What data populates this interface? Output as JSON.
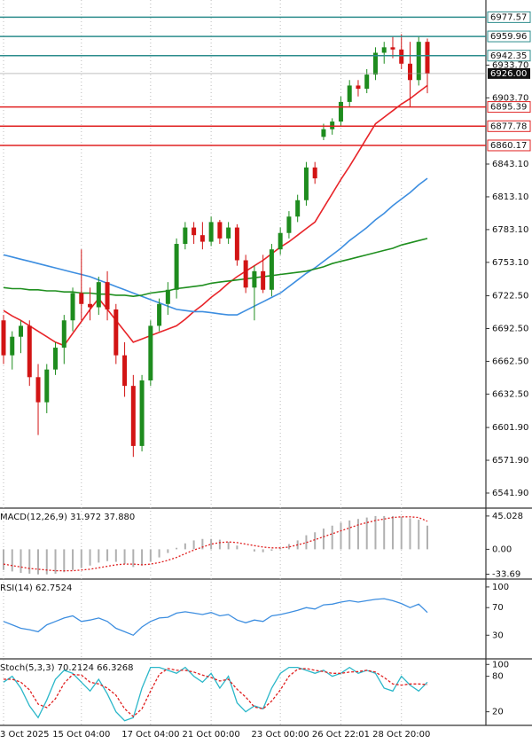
{
  "chart_data": [
    {
      "type": "candlestick",
      "categories": [
        "3 Oct 2025",
        null,
        null,
        null,
        null,
        null,
        null,
        null,
        null,
        "15 Oct 04:00",
        null,
        null,
        null,
        null,
        null,
        null,
        null,
        "17 Oct 04:00",
        null,
        null,
        null,
        null,
        null,
        null,
        "21 Oct 00:00",
        null,
        null,
        null,
        null,
        null,
        null,
        null,
        "23 Oct 00:00",
        null,
        null,
        null,
        null,
        null,
        null,
        "26 Oct 22:01",
        null,
        null,
        null,
        null,
        null,
        null,
        "28 Oct 20:00",
        null,
        null,
        null
      ],
      "open": [
        6700,
        6668,
        6685,
        6695,
        6648,
        6625,
        6655,
        6675,
        6700,
        6725,
        6715,
        6712,
        6735,
        6710,
        6668,
        6640,
        6585,
        6645,
        6695,
        6715,
        6728,
        6770,
        6785,
        6778,
        6772,
        6790,
        6775,
        6785,
        6755,
        6730,
        6745,
        6728,
        6765,
        6780,
        6795,
        6810,
        6840,
        6868,
        6875,
        6882,
        6900,
        6915,
        6912,
        6925,
        6945,
        6950,
        6948,
        6935,
        6920,
        6955
      ],
      "high": [
        6705,
        6690,
        6700,
        6700,
        6660,
        6660,
        6680,
        6705,
        6730,
        6765,
        6730,
        6740,
        6745,
        6715,
        6680,
        6650,
        6650,
        6700,
        6720,
        6735,
        6775,
        6790,
        6790,
        6790,
        6795,
        6792,
        6790,
        6788,
        6760,
        6750,
        6760,
        6770,
        6785,
        6800,
        6815,
        6845,
        6845,
        6880,
        6885,
        6905,
        6920,
        6920,
        6930,
        6950,
        6955,
        6960,
        6962,
        6955,
        6960,
        6958
      ],
      "low": [
        6660,
        6655,
        6670,
        6640,
        6595,
        6615,
        6650,
        6660,
        6690,
        6700,
        6700,
        6705,
        6700,
        6660,
        6630,
        6575,
        6580,
        6640,
        6690,
        6705,
        6720,
        6765,
        6770,
        6765,
        6768,
        6770,
        6770,
        6750,
        6725,
        6700,
        6725,
        6722,
        6760,
        6775,
        6790,
        6805,
        6825,
        6865,
        6870,
        6878,
        6895,
        6905,
        6908,
        6920,
        6935,
        6940,
        6930,
        6895,
        6915,
        6908
      ],
      "close": [
        6668,
        6685,
        6695,
        6648,
        6625,
        6655,
        6675,
        6700,
        6725,
        6715,
        6712,
        6735,
        6710,
        6668,
        6640,
        6585,
        6645,
        6695,
        6715,
        6728,
        6770,
        6785,
        6778,
        6772,
        6790,
        6775,
        6785,
        6755,
        6730,
        6745,
        6728,
        6765,
        6780,
        6795,
        6810,
        6840,
        6830,
        6875,
        6882,
        6900,
        6915,
        6912,
        6925,
        6945,
        6950,
        6948,
        6935,
        6920,
        6955,
        6926
      ],
      "colors": {
        "up": "#1e8c1e",
        "down": "#d21414"
      },
      "overlays": [
        {
          "color": "#e8252a",
          "values": [
            6709,
            6704,
            6700,
            6695,
            6690,
            6685,
            6680,
            6677,
            6688,
            6699,
            6710,
            6720,
            6710,
            6700,
            6690,
            6680,
            6683,
            6686,
            6689,
            6692,
            6695,
            6701,
            6708,
            6714,
            6721,
            6727,
            6734,
            6740,
            6745,
            6750,
            6755,
            6761,
            6767,
            6772,
            6778,
            6784,
            6790,
            6803,
            6816,
            6829,
            6841,
            6854,
            6867,
            6880,
            6886,
            6892,
            6898,
            6903,
            6909,
            6915
          ]
        },
        {
          "color": "#3d8ee0",
          "values": [
            6760,
            6758,
            6756,
            6754,
            6752,
            6750,
            6748,
            6746,
            6744,
            6742,
            6740,
            6737,
            6734,
            6731,
            6728,
            6725,
            6722,
            6719,
            6716,
            6713,
            6710,
            6709,
            6708,
            6708,
            6707,
            6706,
            6705,
            6705,
            6709,
            6713,
            6717,
            6721,
            6725,
            6731,
            6737,
            6743,
            6748,
            6754,
            6760,
            6766,
            6773,
            6779,
            6785,
            6792,
            6798,
            6805,
            6811,
            6817,
            6824,
            6830
          ]
        },
        {
          "color": "#1f8f1f",
          "values": [
            6730,
            6729,
            6729,
            6728,
            6728,
            6727,
            6727,
            6726,
            6726,
            6725,
            6725,
            6724,
            6724,
            6723,
            6723,
            6722,
            6723,
            6725,
            6726,
            6727,
            6729,
            6730,
            6731,
            6732,
            6734,
            6735,
            6736,
            6737,
            6738,
            6739,
            6740,
            6741,
            6742,
            6743,
            6744,
            6745,
            6747,
            6749,
            6752,
            6754,
            6756,
            6758,
            6760,
            6762,
            6764,
            6766,
            6769,
            6771,
            6773,
            6775
          ]
        }
      ],
      "levels": [
        {
          "value": 6977.57,
          "color": "#2b8c8c"
        },
        {
          "value": 6959.96,
          "color": "#2b8c8c"
        },
        {
          "value": 6942.35,
          "color": "#2b8c8c"
        },
        {
          "value": 6895.39,
          "color": "#e02020"
        },
        {
          "value": 6877.78,
          "color": "#e02020"
        },
        {
          "value": 6860.17,
          "color": "#e02020"
        }
      ],
      "last": {
        "value": 6926,
        "label": "6926.00"
      },
      "ylim": [
        6528.9,
        6993.3
      ],
      "yticks": [
        {
          "value": 6541.9,
          "label": "6541.90"
        },
        {
          "value": 6571.9,
          "label": "6571.90"
        },
        {
          "value": 6601.9,
          "label": "6601.90"
        },
        {
          "value": 6632.5,
          "label": "6632.50"
        },
        {
          "value": 6662.5,
          "label": "6662.50"
        },
        {
          "value": 6692.5,
          "label": "6692.50"
        },
        {
          "value": 6722.5,
          "label": "6722.50"
        },
        {
          "value": 6753.1,
          "label": "6753.10"
        },
        {
          "value": 6783.1,
          "label": "6783.10"
        },
        {
          "value": 6813.1,
          "label": "6813.10"
        },
        {
          "value": 6843.1,
          "label": "6843.10"
        },
        {
          "value": 6903.7,
          "label": "6903.70"
        },
        {
          "value": 6933.7,
          "label": "6933.70"
        }
      ]
    },
    {
      "type": "macd",
      "title": "MACD(12,26,9) 31.972 37.880",
      "values": [
        -28,
        -30,
        -32,
        -33,
        -34,
        -34,
        -33,
        -31,
        -28,
        -25,
        -22,
        -18,
        -16,
        -17,
        -20,
        -24,
        -22,
        -17,
        -11,
        -5,
        2,
        8,
        12,
        14,
        14,
        13,
        10,
        5,
        0,
        -3,
        -4,
        -2,
        2,
        7,
        12,
        19,
        23,
        28,
        32,
        36,
        39,
        41,
        43,
        45,
        45,
        45,
        44,
        42,
        40,
        32
      ],
      "signal": [
        -20,
        -22,
        -24,
        -26,
        -27,
        -28,
        -29,
        -29,
        -29,
        -28,
        -27,
        -25,
        -23,
        -21,
        -20,
        -20,
        -21,
        -20,
        -18,
        -15,
        -11,
        -6,
        -1,
        3,
        7,
        9,
        10,
        9,
        7,
        5,
        3,
        2,
        2,
        3,
        6,
        9,
        13,
        17,
        21,
        25,
        29,
        33,
        36,
        39,
        41,
        43,
        44,
        44,
        43,
        38
      ],
      "colors": {
        "bars": "#b0b0b0",
        "signal": "#e02020"
      },
      "ylim": [
        -37.9,
        52.1
      ],
      "yticks": [
        -33.69,
        {
          "value": 0,
          "label": "0.00"
        },
        45.028
      ]
    },
    {
      "type": "rsi",
      "title": "RSI(14) 62.7524",
      "values": [
        50,
        45,
        40,
        38,
        35,
        45,
        50,
        55,
        58,
        50,
        52,
        55,
        50,
        40,
        35,
        30,
        42,
        50,
        55,
        56,
        62,
        64,
        62,
        60,
        63,
        58,
        60,
        52,
        48,
        52,
        50,
        58,
        60,
        63,
        66,
        70,
        68,
        74,
        75,
        78,
        80,
        78,
        80,
        82,
        83,
        80,
        76,
        70,
        75,
        63
      ],
      "color": "#3d8ee0",
      "ylim": [
        -1.8,
        107.6
      ],
      "yticks": [
        30,
        70,
        100
      ]
    },
    {
      "type": "stoch",
      "title": "Stoch(5,3,3) 70.2124 66.3268",
      "k": [
        70,
        80,
        60,
        30,
        10,
        40,
        75,
        90,
        85,
        70,
        55,
        75,
        50,
        20,
        5,
        10,
        60,
        95,
        95,
        90,
        85,
        95,
        80,
        70,
        85,
        60,
        80,
        35,
        20,
        30,
        25,
        60,
        85,
        95,
        95,
        90,
        85,
        90,
        80,
        85,
        95,
        85,
        90,
        85,
        60,
        55,
        80,
        65,
        55,
        70
      ],
      "d": [
        75,
        75,
        70,
        57,
        33,
        27,
        42,
        68,
        83,
        82,
        70,
        67,
        60,
        48,
        25,
        12,
        25,
        55,
        83,
        93,
        90,
        90,
        87,
        82,
        78,
        72,
        75,
        58,
        45,
        28,
        25,
        38,
        57,
        80,
        92,
        93,
        90,
        88,
        85,
        85,
        87,
        88,
        90,
        87,
        78,
        67,
        65,
        67,
        67,
        66
      ],
      "colors": {
        "k": "#2bb7c9",
        "d": "#e02020"
      },
      "ylim": [
        -1.5,
        104.9
      ],
      "yticks": [
        20,
        80,
        100
      ]
    }
  ]
}
